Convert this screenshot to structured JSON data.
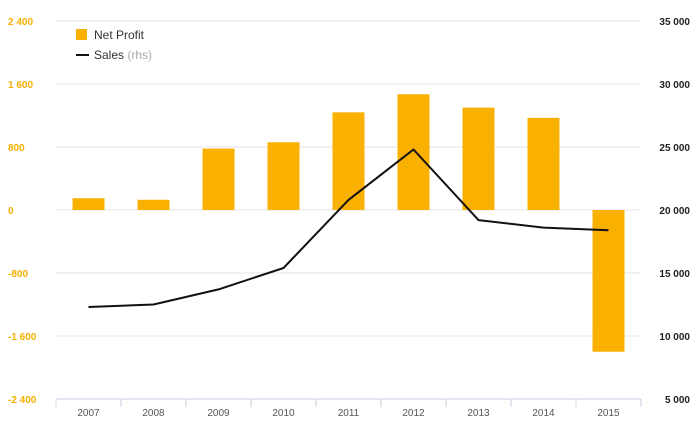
{
  "chart_data": {
    "type": "bar",
    "categories": [
      "2007",
      "2008",
      "2009",
      "2010",
      "2011",
      "2012",
      "2013",
      "2014",
      "2015"
    ],
    "series": [
      {
        "name": "Net Profit",
        "kind": "bar",
        "axis": "left",
        "color": "#f9b000",
        "values": [
          150,
          130,
          780,
          860,
          1240,
          1470,
          1300,
          1170,
          -1800
        ]
      },
      {
        "name": "Sales",
        "note": "(rhs)",
        "kind": "line",
        "axis": "right",
        "color": "#111111",
        "values": [
          12300,
          12500,
          13700,
          15400,
          20800,
          24800,
          19200,
          18600,
          18400
        ]
      }
    ],
    "y_left": {
      "ylim": [
        -2400,
        2400
      ],
      "ticks": [
        -2400,
        -1600,
        -800,
        0,
        800,
        1600,
        2400
      ],
      "tick_labels": [
        "-2 400",
        "-1 600",
        "-800",
        "0",
        "800",
        "1 600",
        "2 400"
      ]
    },
    "y_right": {
      "ylim": [
        5000,
        35000
      ],
      "ticks": [
        5000,
        10000,
        15000,
        20000,
        25000,
        30000,
        35000
      ],
      "tick_labels": [
        "5 000",
        "10 000",
        "15 000",
        "20 000",
        "25 000",
        "30 000",
        "35 000"
      ]
    },
    "grid": true,
    "legend": {
      "position": "top-left"
    },
    "colors": {
      "accent": "#f9b000",
      "line": "#111111",
      "grid": "#e6e6e6",
      "axis": "#c8cde0"
    }
  }
}
